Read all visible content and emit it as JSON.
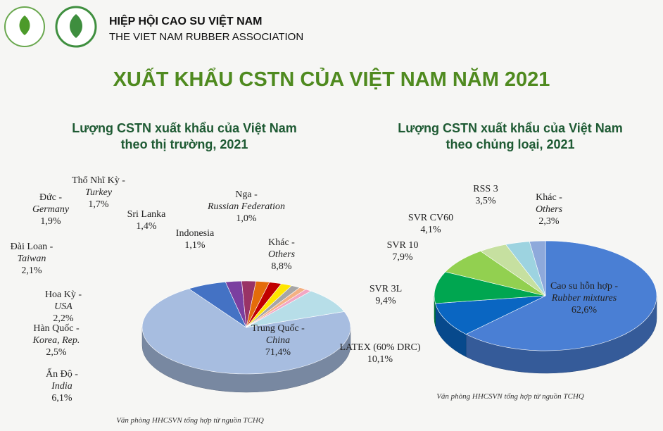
{
  "header": {
    "org_vi": "HIỆP HỘI CAO SU VIỆT NAM",
    "org_en": "THE VIET NAM RUBBER ASSOCIATION"
  },
  "title": "XUẤT KHẨU CSTN CỦA VIỆT NAM NĂM 2021",
  "chart_data": [
    {
      "type": "pie",
      "title": [
        "Lượng CSTN xuất khẩu của Việt Nam",
        "theo thị trường, 2021"
      ],
      "categories": [
        "Trung Quốc - China",
        "Ấn Độ - India",
        "Hàn Quốc - Korea, Rep.",
        "Hoa Kỳ - USA",
        "Đài Loan - Taiwan",
        "Đức - Germany",
        "Thổ Nhĩ Kỳ - Turkey",
        "Sri Lanka",
        "Indonesia",
        "Nga - Russian Federation",
        "Khác - Others"
      ],
      "values": [
        71.4,
        6.1,
        2.5,
        2.2,
        2.1,
        1.9,
        1.7,
        1.4,
        1.1,
        1.0,
        8.8
      ],
      "value_labels": [
        "71,4%",
        "6,1%",
        "2,5%",
        "2,2%",
        "2,1%",
        "1,9%",
        "1,7%",
        "1,4%",
        "1,1%",
        "1,0%",
        "8,8%"
      ],
      "colors": [
        "#a7bde0",
        "#4472c4",
        "#7b3fa0",
        "#993366",
        "#e46c0a",
        "#c00000",
        "#ffe600",
        "#a6a6a6",
        "#f4b183",
        "#f2a7c3",
        "#b7dee8"
      ],
      "source": "Văn phòng HHCSVN tổng hợp từ nguồn TCHQ"
    },
    {
      "type": "pie",
      "title": [
        "Lượng CSTN xuất khẩu của Việt Nam",
        "theo chủng loại, 2021"
      ],
      "categories": [
        "Cao su hỗn hợp - Rubber mixtures",
        "LATEX (60% DRC)",
        "SVR 3L",
        "SVR 10",
        "SVR CV60",
        "RSS 3",
        "Khác - Others"
      ],
      "values": [
        62.6,
        10.1,
        9.4,
        7.9,
        4.1,
        3.5,
        2.3
      ],
      "value_labels": [
        "62,6%",
        "10,1%",
        "9,4%",
        "7,9%",
        "4,1%",
        "3,5%",
        "2,3%"
      ],
      "colors": [
        "#4a7fd4",
        "#0a66c2",
        "#00a650",
        "#92d050",
        "#c6e0a0",
        "#9dd3e0",
        "#8ea9db"
      ],
      "source": "Văn phòng HHCSVN tổng hợp từ nguồn TCHQ"
    }
  ]
}
